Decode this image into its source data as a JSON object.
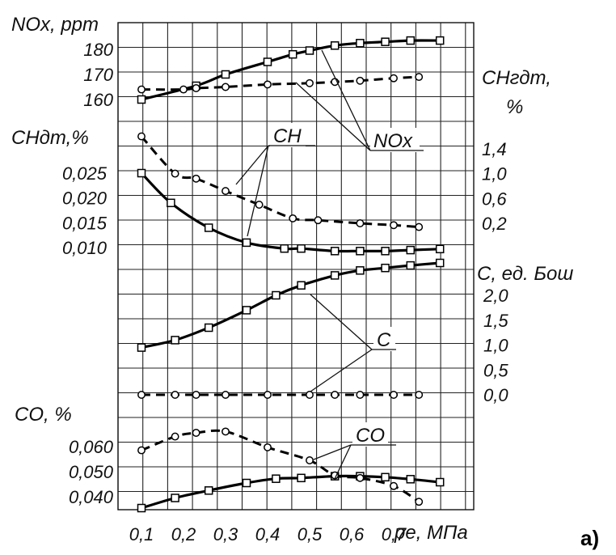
{
  "panel_letter": "а)",
  "chart_data": {
    "type": "line",
    "x_axis": {
      "ticks": [
        0.1,
        0.2,
        0.3,
        0.4,
        0.5,
        0.6,
        0.7
      ],
      "tick_labels": [
        "0,1",
        "0,2",
        "0,3",
        "0,4",
        "0,5",
        "0,6",
        "0,7"
      ],
      "label": "pе, МПа"
    },
    "panels": [
      {
        "id": "nox",
        "left_axis": {
          "title": "NOx, ppm",
          "ticks": [
            {
              "v": 180,
              "t": "180"
            },
            {
              "v": 170,
              "t": "170"
            },
            {
              "v": 160,
              "t": "160"
            }
          ]
        },
        "right_axis": {
          "title_line1": "CHгдт,",
          "title_line2": "%"
        },
        "callout": "NOx",
        "series": [
          {
            "style": "solid",
            "marker": "square",
            "x": [
              0.1,
              0.23,
              0.3,
              0.4,
              0.46,
              0.5,
              0.56,
              0.62,
              0.68,
              0.74,
              0.81
            ],
            "y": [
              160,
              165.5,
              170,
              175,
              178,
              179.5,
              181.5,
              182.5,
              183,
              183.5,
              183.5
            ]
          },
          {
            "style": "dashed",
            "marker": "circle",
            "x": [
              0.1,
              0.2,
              0.23,
              0.3,
              0.4,
              0.5,
              0.56,
              0.62,
              0.7,
              0.76
            ],
            "y": [
              164,
              164,
              164.5,
              165,
              166,
              166.5,
              167,
              167.5,
              168.5,
              169
            ]
          }
        ]
      },
      {
        "id": "ch",
        "left_axis": {
          "title": "CHдт,%",
          "ticks": [
            {
              "v": 0.025,
              "t": "0,025"
            },
            {
              "v": 0.02,
              "t": "0,020"
            },
            {
              "v": 0.015,
              "t": "0,015"
            },
            {
              "v": 0.01,
              "t": "0,010"
            }
          ]
        },
        "right_axis": {
          "ticks": [
            {
              "v": 1.4,
              "t": "1,4"
            },
            {
              "v": 1.0,
              "t": "1,0"
            },
            {
              "v": 0.6,
              "t": "0,6"
            },
            {
              "v": 0.2,
              "t": "0,2"
            }
          ]
        },
        "callout": "CH",
        "series": [
          {
            "style": "solid",
            "marker": "square",
            "axis": "left",
            "x": [
              0.1,
              0.17,
              0.26,
              0.35,
              0.44,
              0.48,
              0.56,
              0.62,
              0.68,
              0.74,
              0.81
            ],
            "y": [
              0.025,
              0.019,
              0.014,
              0.011,
              0.0098,
              0.0098,
              0.0093,
              0.0093,
              0.0093,
              0.0095,
              0.0097
            ]
          },
          {
            "style": "dashed",
            "marker": "circle",
            "axis": "right",
            "x": [
              0.1,
              0.18,
              0.23,
              0.3,
              0.38,
              0.46,
              0.52,
              0.62,
              0.7,
              0.76
            ],
            "y": [
              1.6,
              1.0,
              0.92,
              0.72,
              0.5,
              0.28,
              0.25,
              0.2,
              0.17,
              0.14
            ]
          }
        ]
      },
      {
        "id": "c",
        "right_axis": {
          "title": "C, ед. Бош",
          "ticks": [
            {
              "v": 2.0,
              "t": "2,0"
            },
            {
              "v": 1.5,
              "t": "1,5"
            },
            {
              "v": 1.0,
              "t": "1,0"
            },
            {
              "v": 0.5,
              "t": "0,5"
            },
            {
              "v": 0.0,
              "t": "0,0"
            }
          ]
        },
        "callout": "C",
        "series": [
          {
            "style": "solid",
            "marker": "square",
            "x": [
              0.1,
              0.18,
              0.26,
              0.35,
              0.42,
              0.48,
              0.56,
              0.62,
              0.68,
              0.74,
              0.81
            ],
            "y": [
              0.95,
              1.1,
              1.35,
              1.7,
              2.0,
              2.2,
              2.4,
              2.5,
              2.55,
              2.6,
              2.65
            ]
          },
          {
            "style": "dashed",
            "marker": "circle",
            "x": [
              0.1,
              0.18,
              0.23,
              0.3,
              0.4,
              0.5,
              0.56,
              0.62,
              0.7,
              0.76
            ],
            "y": [
              0.0,
              0.0,
              0.0,
              0.0,
              0.0,
              0.0,
              0.0,
              0.0,
              0.0,
              0.0
            ]
          }
        ]
      },
      {
        "id": "co",
        "left_axis": {
          "title": "CO, %",
          "ticks": [
            {
              "v": 0.06,
              "t": "0,060"
            },
            {
              "v": 0.05,
              "t": "0,050"
            },
            {
              "v": 0.04,
              "t": "0,040"
            }
          ]
        },
        "callout": "CO",
        "series": [
          {
            "style": "solid",
            "marker": "square",
            "x": [
              0.1,
              0.18,
              0.26,
              0.35,
              0.42,
              0.48,
              0.56,
              0.62,
              0.68,
              0.74,
              0.81
            ],
            "y": [
              0.0355,
              0.0395,
              0.0425,
              0.0455,
              0.0472,
              0.0475,
              0.0482,
              0.0482,
              0.0478,
              0.047,
              0.0458
            ]
          },
          {
            "style": "dashed",
            "marker": "circle",
            "x": [
              0.1,
              0.18,
              0.23,
              0.3,
              0.4,
              0.5,
              0.56,
              0.62,
              0.7,
              0.76
            ],
            "y": [
              0.0585,
              0.064,
              0.0655,
              0.066,
              0.0597,
              0.0545,
              0.0485,
              0.0475,
              0.0443,
              0.038
            ]
          }
        ]
      }
    ]
  }
}
